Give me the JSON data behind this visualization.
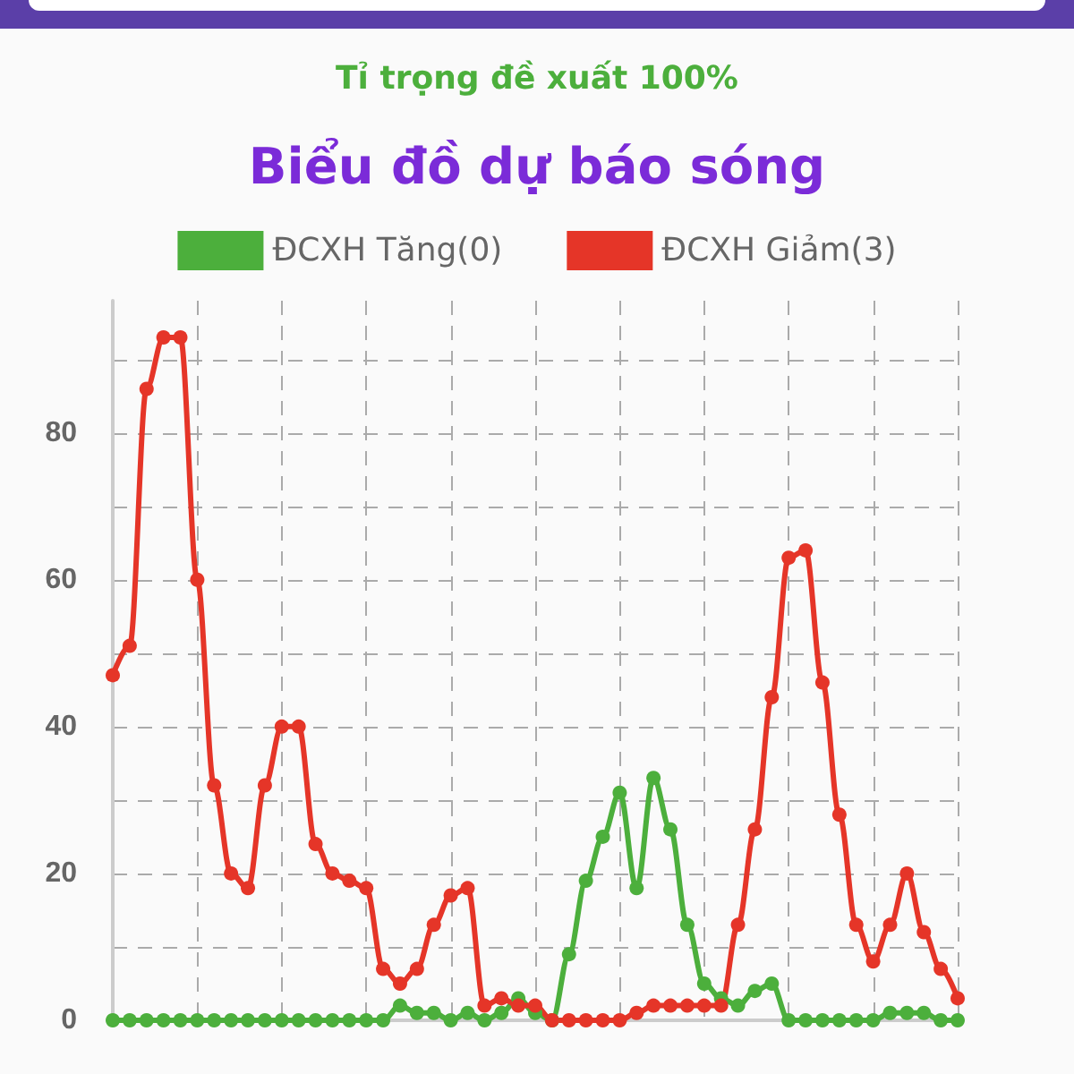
{
  "chart_data": {
    "type": "line",
    "title": "Biểu đồ dự báo sóng",
    "subtitle": "Tỉ trọng đề xuất 100%",
    "categories": [
      null,
      null,
      null,
      null,
      null,
      null,
      null,
      null,
      null,
      null,
      null,
      null,
      null,
      null,
      null,
      null,
      null,
      null,
      null,
      null,
      null,
      null,
      null,
      null,
      null,
      null,
      null,
      null,
      null,
      null,
      null,
      null,
      null,
      null,
      null,
      null,
      null,
      null,
      null,
      null,
      null,
      null,
      null,
      null,
      null,
      null,
      null,
      null,
      null,
      null,
      null
    ],
    "series": [
      {
        "name": "ĐCXH Tăng(0)",
        "color": "#4caf3c",
        "values": [
          0,
          0,
          0,
          0,
          0,
          0,
          0,
          0,
          0,
          0,
          0,
          0,
          0,
          0,
          0,
          0,
          0,
          2,
          1,
          1,
          0,
          1,
          0,
          1,
          3,
          1,
          0,
          9,
          19,
          25,
          31,
          18,
          33,
          26,
          13,
          5,
          3,
          2,
          4,
          5,
          0,
          0,
          0,
          0,
          0,
          0,
          1,
          1,
          1,
          0,
          0
        ]
      },
      {
        "name": "ĐCXH Giảm(3)",
        "color": "#e53528",
        "values": [
          47,
          51,
          86,
          93,
          93,
          60,
          32,
          20,
          18,
          32,
          40,
          40,
          24,
          20,
          19,
          18,
          7,
          5,
          7,
          13,
          17,
          18,
          2,
          3,
          2,
          2,
          0,
          0,
          0,
          0,
          0,
          1,
          2,
          2,
          2,
          2,
          2,
          13,
          26,
          44,
          63,
          64,
          46,
          28,
          13,
          8,
          13,
          20,
          12,
          7,
          3
        ]
      }
    ],
    "ylim": [
      0,
      98
    ],
    "yticks": [
      0,
      {
        "value": 10,
        "label": null
      },
      20,
      {
        "value": 30,
        "label": null
      },
      40,
      {
        "value": 50,
        "label": null
      },
      60,
      {
        "value": 70,
        "label": null
      },
      80,
      {
        "value": 90,
        "label": null
      }
    ],
    "grid": true,
    "legend": "top",
    "marker": "circle",
    "line_style": "solid"
  }
}
